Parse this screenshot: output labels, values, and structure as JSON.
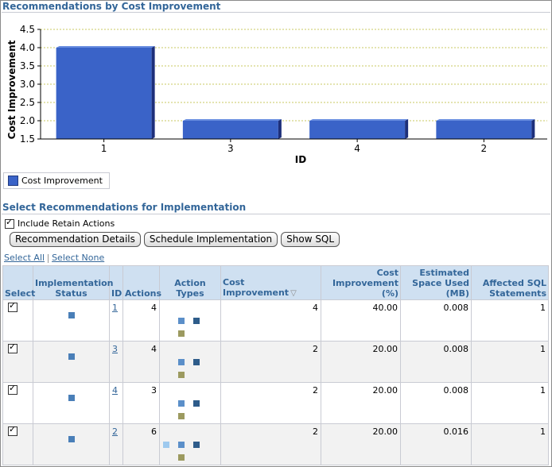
{
  "chart_section": {
    "title": "Recommendations by Cost Improvement"
  },
  "chart_data": {
    "type": "bar",
    "categories": [
      "1",
      "3",
      "4",
      "2"
    ],
    "values": [
      4,
      2,
      2,
      2
    ],
    "xlabel": "ID",
    "ylabel": "Cost Improvement",
    "ylim": [
      1.5,
      4.5
    ],
    "yticks": [
      "1.5",
      "2.0",
      "2.5",
      "3.0",
      "3.5",
      "4.0",
      "4.5"
    ],
    "grid": true,
    "legend": [
      "Cost Improvement"
    ],
    "bar_color": "#3a63c8"
  },
  "impl_section": {
    "title": "Select Recommendations for Implementation",
    "retain_label": "Include Retain Actions",
    "buttons": {
      "details": "Recommendation Details",
      "schedule": "Schedule Implementation",
      "show_sql": "Show SQL"
    },
    "select_all": "Select All",
    "select_none": "Select None"
  },
  "table": {
    "headers": {
      "select": "Select",
      "status": "Implementation Status",
      "id": "ID",
      "actions": "Actions",
      "action_types": "Action Types",
      "cost": "Cost Improvement",
      "cost_pct": "Cost Improvement (%)",
      "space": "Estimated Space Used (MB)",
      "affected": "Affected SQL Statements"
    },
    "rows": [
      {
        "id": "1",
        "actions": "4",
        "cost": "4",
        "pct": "40.00",
        "space": "0.008",
        "affected": "1"
      },
      {
        "id": "3",
        "actions": "4",
        "cost": "2",
        "pct": "20.00",
        "space": "0.008",
        "affected": "1"
      },
      {
        "id": "4",
        "actions": "3",
        "cost": "2",
        "pct": "20.00",
        "space": "0.008",
        "affected": "1"
      },
      {
        "id": "2",
        "actions": "6",
        "cost": "2",
        "pct": "20.00",
        "space": "0.016",
        "affected": "1"
      }
    ]
  },
  "colors": {
    "header_text": "#336699",
    "status_icon": "#4a7fb8",
    "type_blue": "#5b8fc9",
    "type_navy": "#2e5c8a",
    "type_olive": "#9c9a60",
    "type_light": "#9ec9ee"
  }
}
